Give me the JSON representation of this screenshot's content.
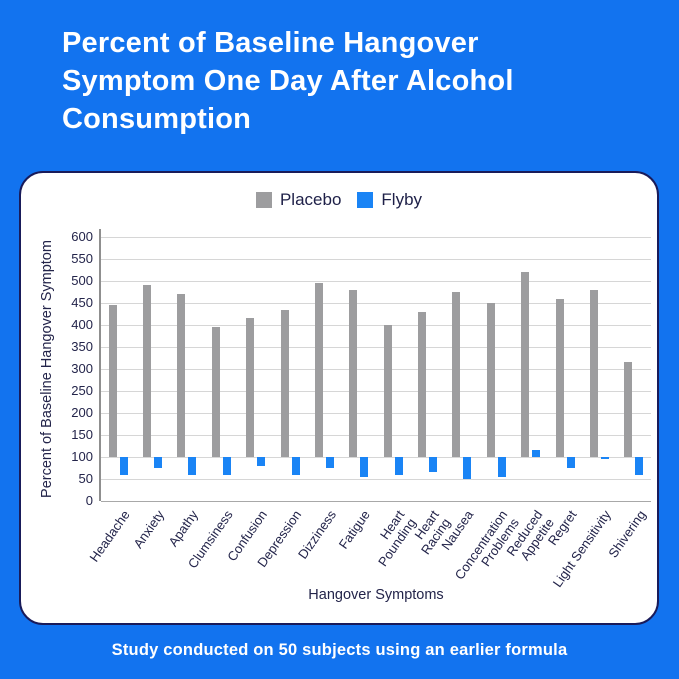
{
  "page_title": {
    "line1": "Percent of Baseline Hangover",
    "line2": "Symptom One Day After Alcohol",
    "line3": "Consumption"
  },
  "legend": [
    {
      "label": "Placebo",
      "color": "#9D9D9F"
    },
    {
      "label": "Flyby",
      "color": "#1A84F5"
    }
  ],
  "chart_data": {
    "type": "bar",
    "title": "Percent of Baseline Hangover Symptom One Day After Alcohol Consumption",
    "xlabel": "Hangover Symptoms",
    "ylabel": "Percent of Baseline Hangover Symptom",
    "ylim": [
      0,
      600
    ],
    "ytick_step": 50,
    "baseline": 100,
    "grid": true,
    "legend_position": "top-center",
    "categories": [
      "Headache",
      "Anxiety",
      "Apathy",
      "Clumsiness",
      "Confusion",
      "Depression",
      "Dizziness",
      "Fatigue",
      "Heart\nPounding",
      "Heart\nRacing",
      "Nausea",
      "Concentration\nProblems",
      "Reduced\nAppetite",
      "Regret",
      "Light Sensitivity",
      "Shivering"
    ],
    "series": [
      {
        "name": "Placebo",
        "color": "#9D9D9F",
        "values": [
          445,
          490,
          470,
          395,
          415,
          435,
          495,
          480,
          400,
          430,
          475,
          450,
          520,
          460,
          480,
          315
        ]
      },
      {
        "name": "Flyby",
        "color": "#1A84F5",
        "values": [
          60,
          75,
          60,
          60,
          80,
          60,
          75,
          55,
          60,
          65,
          50,
          55,
          115,
          75,
          95,
          60
        ]
      }
    ]
  },
  "footer": {
    "caption": "Study conducted on 50 subjects using an earlier formula"
  },
  "colors": {
    "background": "#1273EF",
    "card": "#FFFFFF",
    "card_border": "#191B5A",
    "axis_text": "#23244A",
    "gridline": "#D6D6D6",
    "title_text": "#FFFFFF"
  }
}
